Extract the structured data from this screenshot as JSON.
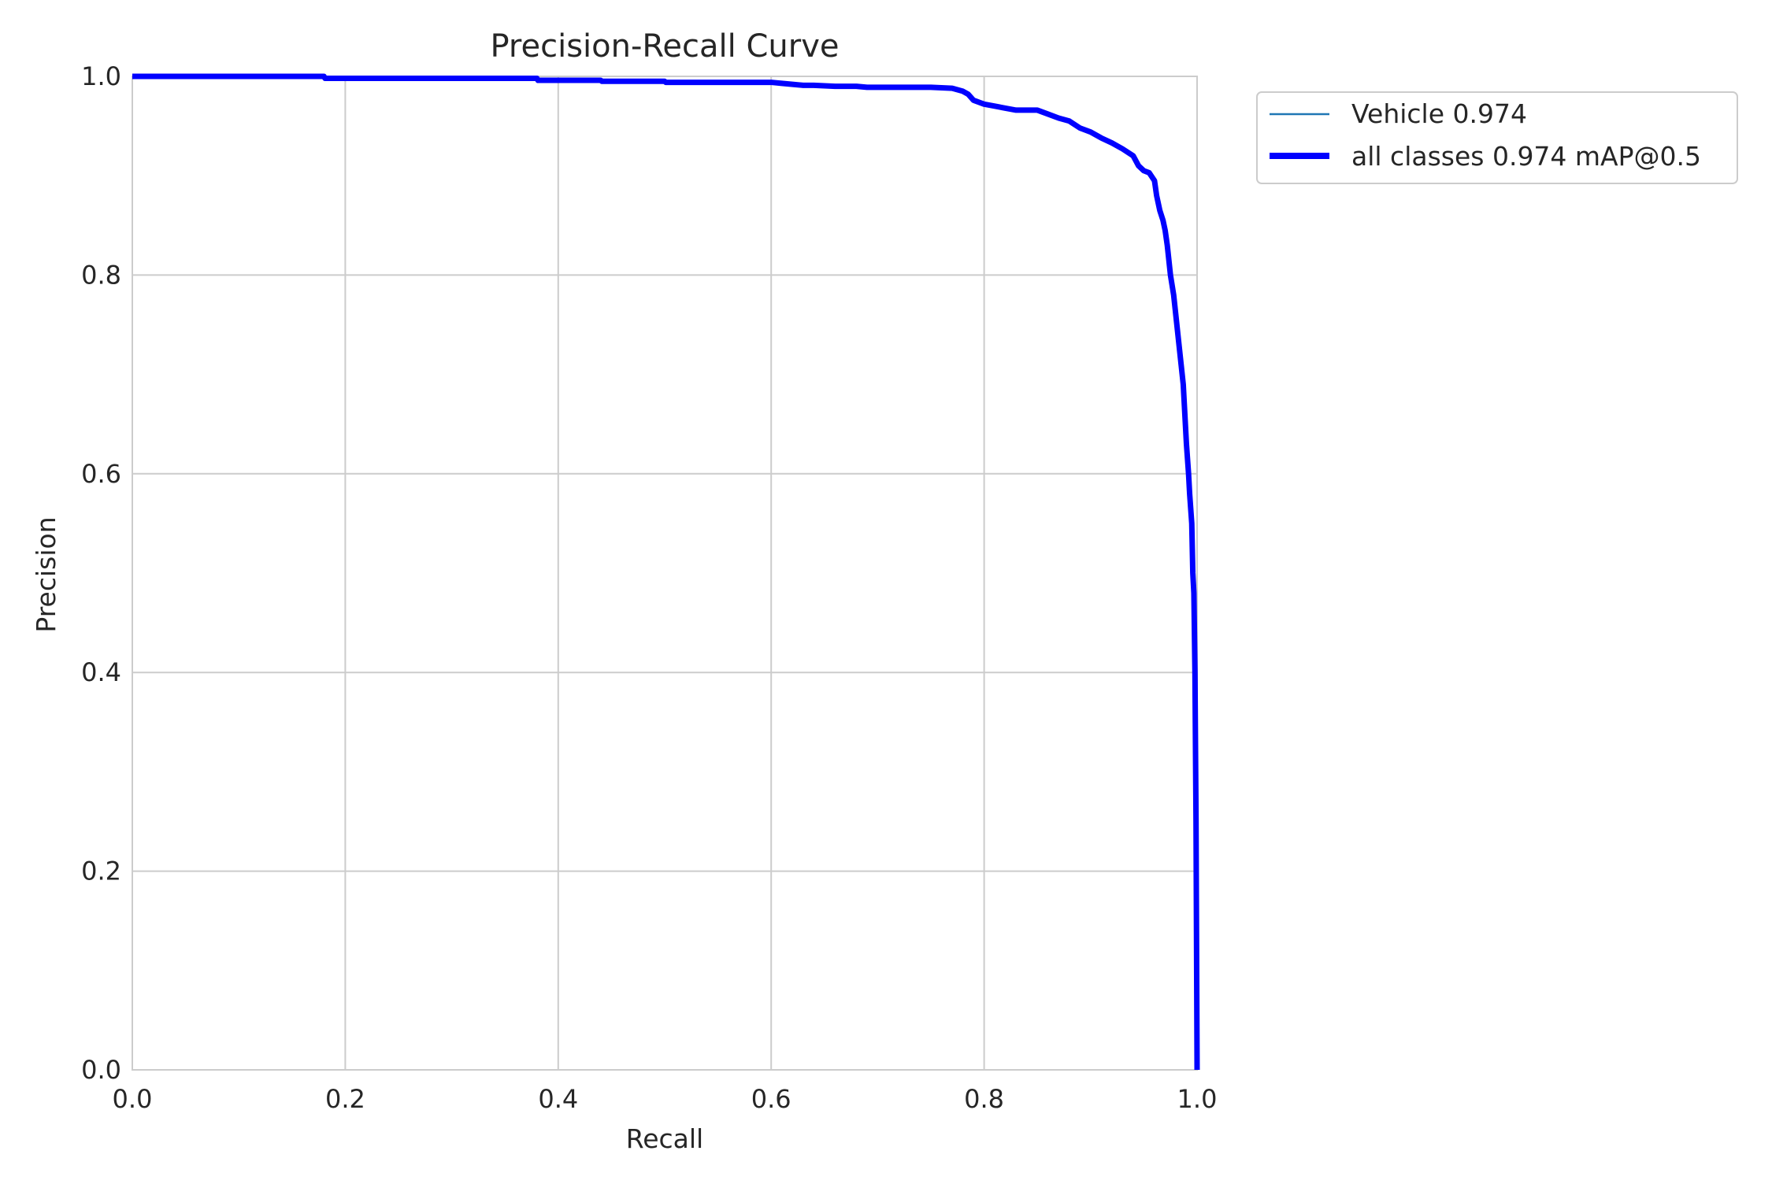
{
  "chart_data": {
    "type": "line",
    "title": "Precision-Recall Curve",
    "xlabel": "Recall",
    "ylabel": "Precision",
    "xlim": [
      0,
      1
    ],
    "ylim": [
      0,
      1
    ],
    "xticks": [
      "0.0",
      "0.2",
      "0.4",
      "0.6",
      "0.8",
      "1.0"
    ],
    "yticks": [
      "0.0",
      "0.2",
      "0.4",
      "0.6",
      "0.8",
      "1.0"
    ],
    "grid": true,
    "legend_position": "upper-right-outside",
    "series": [
      {
        "name": "Vehicle 0.974",
        "color": "#1f77b4",
        "line": "thin",
        "x": [
          0,
          0.18,
          0.181,
          0.38,
          0.381,
          0.44,
          0.441,
          0.5,
          0.501,
          0.6,
          0.61,
          0.62,
          0.63,
          0.64,
          0.66,
          0.68,
          0.69,
          0.7,
          0.72,
          0.75,
          0.77,
          0.78,
          0.785,
          0.79,
          0.8,
          0.81,
          0.82,
          0.83,
          0.85,
          0.86,
          0.87,
          0.88,
          0.89,
          0.9,
          0.91,
          0.92,
          0.93,
          0.94,
          0.945,
          0.95,
          0.955,
          0.96,
          0.962,
          0.965,
          0.968,
          0.97,
          0.972,
          0.975,
          0.978,
          0.98,
          0.982,
          0.985,
          0.987,
          0.99,
          0.992,
          0.993,
          0.995,
          0.996,
          0.997,
          0.998,
          0.999,
          1.0
        ],
        "y": [
          1.0,
          1.0,
          0.998,
          0.998,
          0.996,
          0.996,
          0.995,
          0.995,
          0.994,
          0.994,
          0.993,
          0.992,
          0.991,
          0.991,
          0.99,
          0.99,
          0.989,
          0.989,
          0.989,
          0.989,
          0.988,
          0.985,
          0.982,
          0.976,
          0.972,
          0.97,
          0.968,
          0.966,
          0.966,
          0.962,
          0.958,
          0.955,
          0.948,
          0.944,
          0.938,
          0.933,
          0.927,
          0.92,
          0.91,
          0.905,
          0.903,
          0.895,
          0.88,
          0.865,
          0.855,
          0.845,
          0.83,
          0.8,
          0.78,
          0.76,
          0.74,
          0.71,
          0.69,
          0.63,
          0.6,
          0.58,
          0.55,
          0.5,
          0.48,
          0.4,
          0.25,
          0.0
        ]
      },
      {
        "name": "all classes 0.974 mAP@0.5",
        "color": "#0000ff",
        "line": "thick",
        "x": [
          0,
          0.18,
          0.181,
          0.38,
          0.381,
          0.44,
          0.441,
          0.5,
          0.501,
          0.6,
          0.61,
          0.62,
          0.63,
          0.64,
          0.66,
          0.68,
          0.69,
          0.7,
          0.72,
          0.75,
          0.77,
          0.78,
          0.785,
          0.79,
          0.8,
          0.81,
          0.82,
          0.83,
          0.85,
          0.86,
          0.87,
          0.88,
          0.89,
          0.9,
          0.91,
          0.92,
          0.93,
          0.94,
          0.945,
          0.95,
          0.955,
          0.96,
          0.962,
          0.965,
          0.968,
          0.97,
          0.972,
          0.975,
          0.978,
          0.98,
          0.982,
          0.985,
          0.987,
          0.99,
          0.992,
          0.993,
          0.995,
          0.996,
          0.997,
          0.998,
          0.999,
          1.0
        ],
        "y": [
          1.0,
          1.0,
          0.998,
          0.998,
          0.996,
          0.996,
          0.995,
          0.995,
          0.994,
          0.994,
          0.993,
          0.992,
          0.991,
          0.991,
          0.99,
          0.99,
          0.989,
          0.989,
          0.989,
          0.989,
          0.988,
          0.985,
          0.982,
          0.976,
          0.972,
          0.97,
          0.968,
          0.966,
          0.966,
          0.962,
          0.958,
          0.955,
          0.948,
          0.944,
          0.938,
          0.933,
          0.927,
          0.92,
          0.91,
          0.905,
          0.903,
          0.895,
          0.88,
          0.865,
          0.855,
          0.845,
          0.83,
          0.8,
          0.78,
          0.76,
          0.74,
          0.71,
          0.69,
          0.63,
          0.6,
          0.58,
          0.55,
          0.5,
          0.48,
          0.4,
          0.25,
          0.0
        ]
      }
    ]
  }
}
